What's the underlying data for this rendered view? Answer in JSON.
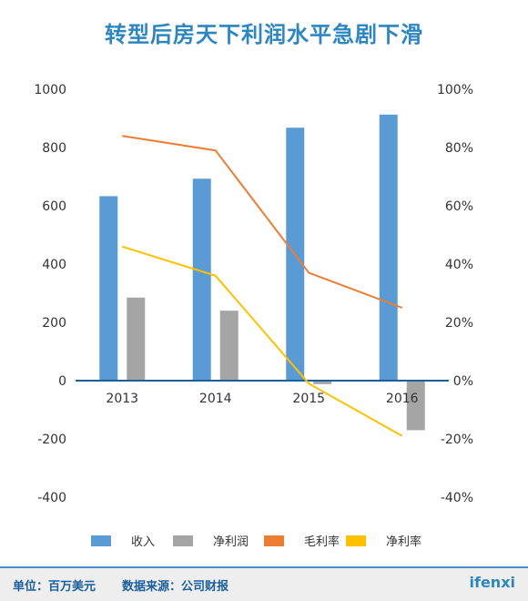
{
  "title": "转型后房天下利润水平急剧下滑",
  "chart_data": {
    "type": "bar",
    "categories": [
      "2013",
      "2014",
      "2015",
      "2016"
    ],
    "series": [
      {
        "name": "收入",
        "kind": "bar",
        "axis": "left",
        "color": "#5b9bd5",
        "values": [
          633,
          693,
          868,
          913
        ]
      },
      {
        "name": "净利润",
        "kind": "bar",
        "axis": "left",
        "color": "#a5a5a5",
        "values": [
          285,
          240,
          -12,
          -170
        ]
      },
      {
        "name": "毛利率",
        "kind": "line",
        "axis": "right",
        "color": "#ed7d31",
        "values": [
          0.84,
          0.79,
          0.37,
          0.25
        ]
      },
      {
        "name": "净利率",
        "kind": "line",
        "axis": "right",
        "color": "#ffc000",
        "values": [
          0.46,
          0.36,
          -0.01,
          -0.19
        ]
      }
    ],
    "ylim_left": [
      -400,
      1000
    ],
    "yticks_left": [
      "1000",
      "800",
      "600",
      "400",
      "200",
      "0",
      "-200",
      "-400"
    ],
    "ylim_right": [
      -0.4,
      1.0
    ],
    "yticks_right": [
      "100%",
      "80%",
      "60%",
      "40%",
      "20%",
      "0%",
      "-20%",
      "-40%"
    ],
    "grid": false,
    "legend_position": "bottom"
  },
  "footer": {
    "unit": "单位：百万美元",
    "source": "数据来源：公司财报",
    "brand": "ifenxi"
  },
  "colors": {
    "title": "#2e86c1",
    "axis_line": "#1a5f9c"
  }
}
